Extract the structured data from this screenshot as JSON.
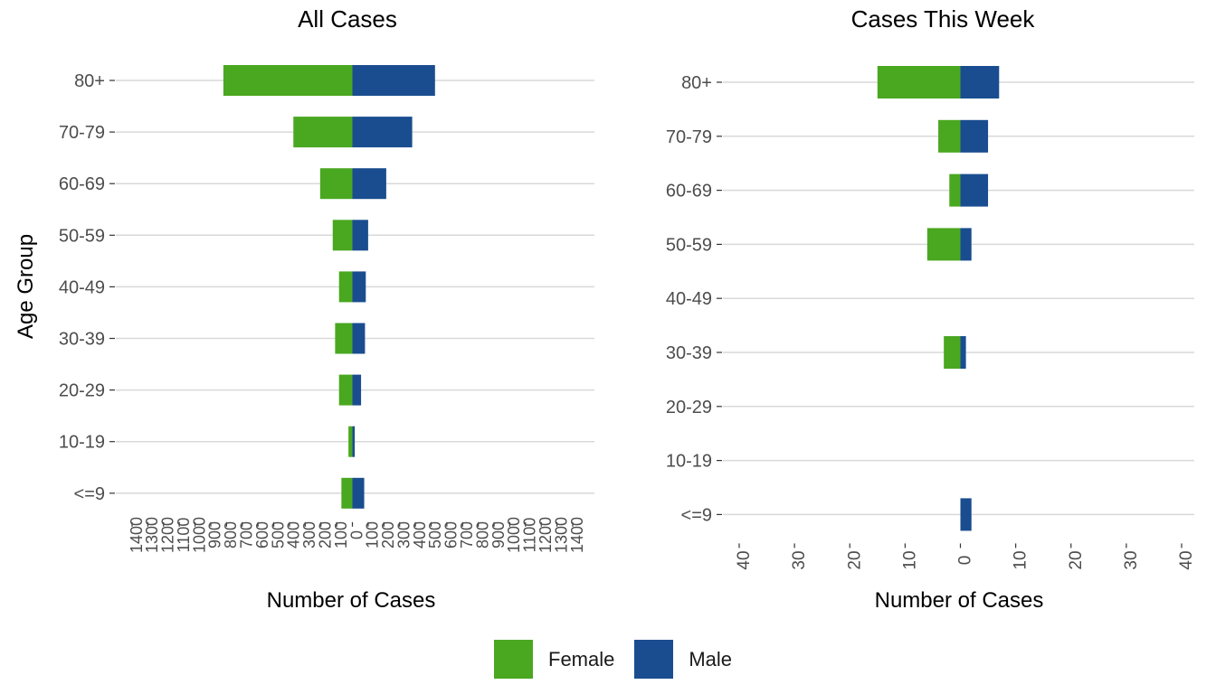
{
  "chart_data": [
    {
      "type": "bar",
      "orientation": "horizontal",
      "title": "All Cases",
      "xlabel": "Number of Cases",
      "ylabel": "Age Group",
      "categories": [
        "80+",
        "70-79",
        "60-69",
        "50-59",
        "40-49",
        "30-39",
        "20-29",
        "10-19",
        "<=9"
      ],
      "series": [
        {
          "name": "Female",
          "values": [
            -820,
            -375,
            -205,
            -125,
            -85,
            -110,
            -85,
            -25,
            -70
          ]
        },
        {
          "name": "Male",
          "values": [
            525,
            380,
            215,
            100,
            85,
            80,
            55,
            15,
            75
          ]
        }
      ],
      "xlim": [
        -1400,
        1400
      ],
      "x_ticks": [
        -1400,
        -1300,
        -1200,
        -1100,
        -1000,
        -900,
        -800,
        -700,
        -600,
        -500,
        -400,
        -300,
        -200,
        -100,
        0,
        100,
        200,
        300,
        400,
        500,
        600,
        700,
        800,
        900,
        1000,
        1100,
        1200,
        1300,
        1400
      ],
      "x_tick_labels": [
        "1400",
        "1300",
        "1200",
        "1100",
        "1000",
        "900",
        "800",
        "700",
        "600",
        "500",
        "400",
        "300",
        "200",
        "100",
        "0",
        "100",
        "200",
        "300",
        "400",
        "500",
        "600",
        "700",
        "800",
        "900",
        "1000",
        "1100",
        "1200",
        "1300",
        "1400"
      ],
      "grid": "horizontal"
    },
    {
      "type": "bar",
      "orientation": "horizontal",
      "title": "Cases This Week",
      "xlabel": "Number of Cases",
      "ylabel": "",
      "categories": [
        "80+",
        "70-79",
        "60-69",
        "50-59",
        "40-49",
        "30-39",
        "20-29",
        "10-19",
        "<=9"
      ],
      "series": [
        {
          "name": "Female",
          "values": [
            -15,
            -4,
            -2,
            -6,
            0,
            -3,
            0,
            0,
            0
          ]
        },
        {
          "name": "Male",
          "values": [
            7,
            5,
            5,
            2,
            0,
            1,
            0,
            0,
            2
          ]
        }
      ],
      "xlim": [
        -40,
        40
      ],
      "x_ticks": [
        -40,
        -30,
        -20,
        -10,
        0,
        10,
        20,
        30,
        40
      ],
      "x_tick_labels": [
        "40",
        "30",
        "20",
        "10",
        "0",
        "10",
        "20",
        "30",
        "40"
      ],
      "grid": "horizontal"
    }
  ],
  "colors": {
    "Female": "#4aa720",
    "Male": "#1a4d8f",
    "grid": "#d9d9d9",
    "tick_text": "#4d4d4d",
    "title_text": "#000000"
  },
  "legend": {
    "position": "bottom",
    "items": [
      {
        "label": "Female",
        "color": "#4aa720"
      },
      {
        "label": "Male",
        "color": "#1a4d8f"
      }
    ]
  }
}
